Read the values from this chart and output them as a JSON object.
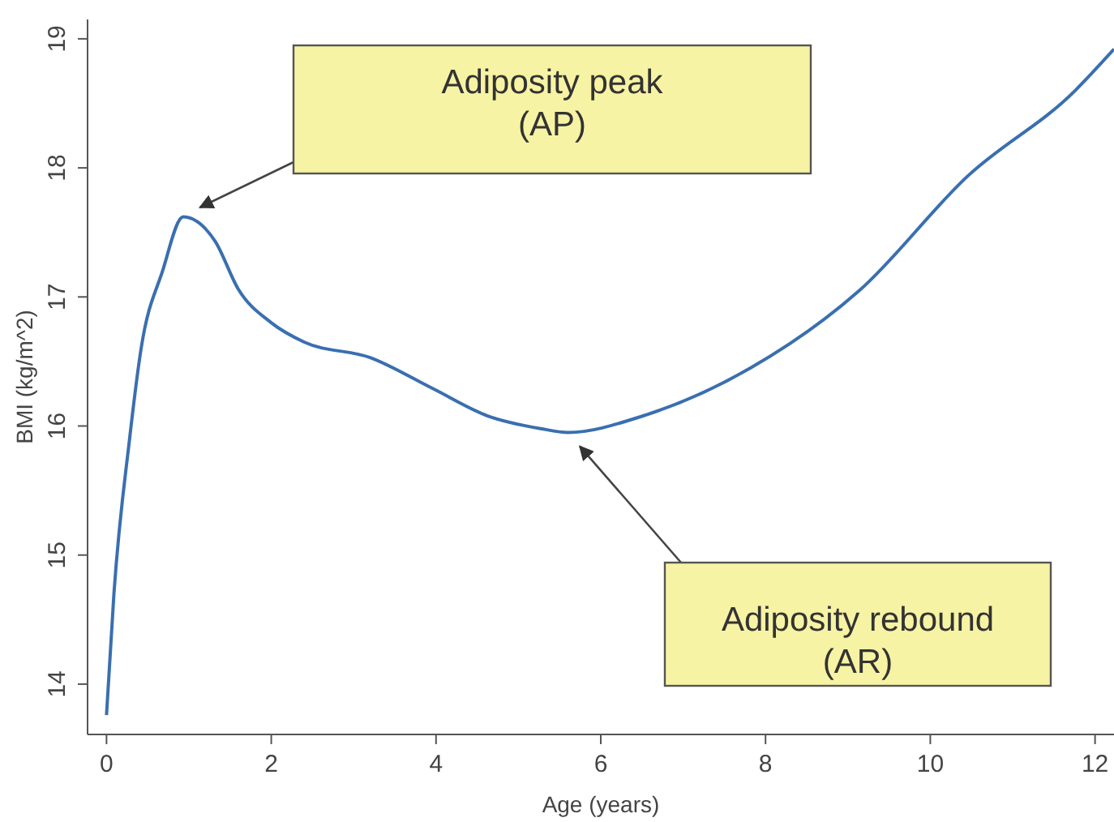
{
  "chart_data": {
    "type": "line",
    "xlabel": "Age (years)",
    "ylabel": "BMI (kg/m^2)",
    "xlim": [
      -0.23,
      12.23
    ],
    "ylim": [
      13.61,
      19.15
    ],
    "xticks": [
      0,
      2,
      4,
      6,
      8,
      10,
      12
    ],
    "yticks": [
      14,
      15,
      16,
      17,
      18,
      19
    ],
    "grid": false,
    "marker": "none",
    "line_style": "solid",
    "x": [
      0,
      0.09,
      0.28,
      0.42,
      0.68,
      0.93,
      1.32,
      1.6,
      2.0,
      2.4,
      3.2,
      3.96,
      4.62,
      5.27,
      5.6,
      6.52,
      7.82,
      9.14,
      10.46,
      11.76,
      12.23
    ],
    "series": [
      {
        "color": "#3a6fb0",
        "values": [
          13.76,
          14.7,
          15.9,
          16.6,
          17.2,
          17.62,
          17.43,
          17.06,
          16.8,
          16.65,
          16.53,
          16.29,
          16.08,
          15.98,
          15.95,
          16.08,
          16.45,
          17.05,
          17.94,
          18.6,
          18.92
        ]
      }
    ],
    "annotations": [
      "Adiposity peak\n(AP)",
      "Adiposity rebound\n(AR)"
    ]
  }
}
